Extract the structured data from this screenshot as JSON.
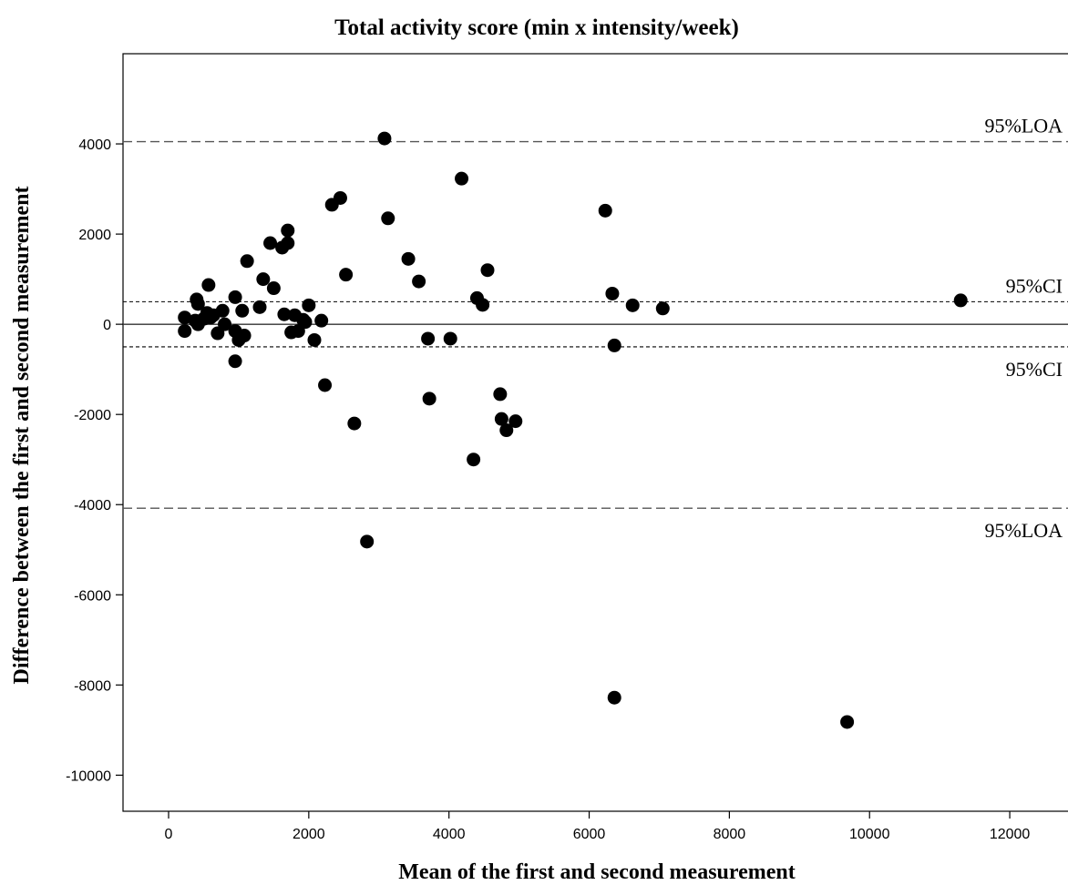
{
  "chart_data": {
    "type": "scatter",
    "title": "Total activity score (min x intensity/week)",
    "xlabel": "Mean of the first and second measurement",
    "ylabel": "Difference between the first and second measurement",
    "xlim": [
      -650,
      13000
    ],
    "ylim": [
      -10800,
      6000
    ],
    "xticks": [
      0,
      2000,
      4000,
      6000,
      8000,
      10000,
      12000
    ],
    "yticks": [
      -10000,
      -8000,
      -6000,
      -4000,
      -2000,
      0,
      2000,
      4000
    ],
    "grid": false,
    "reference_lines": [
      {
        "label": "95%LOA",
        "y": 4050,
        "style": "dashed",
        "label_position": "above"
      },
      {
        "label": "95%CI",
        "y": 500,
        "style": "dotted",
        "label_position": "above"
      },
      {
        "label": "",
        "y": 0,
        "style": "solid",
        "label_position": "none"
      },
      {
        "label": "95%CI",
        "y": -500,
        "style": "dotted",
        "label_position": "below"
      },
      {
        "label": "95%LOA",
        "y": -4080,
        "style": "dashed",
        "label_position": "below"
      }
    ],
    "points": [
      {
        "x": 230,
        "y": 150
      },
      {
        "x": 230,
        "y": -150
      },
      {
        "x": 380,
        "y": 80
      },
      {
        "x": 400,
        "y": 550
      },
      {
        "x": 420,
        "y": 450
      },
      {
        "x": 420,
        "y": 0
      },
      {
        "x": 500,
        "y": 120
      },
      {
        "x": 550,
        "y": 250
      },
      {
        "x": 570,
        "y": 870
      },
      {
        "x": 600,
        "y": 150
      },
      {
        "x": 640,
        "y": 200
      },
      {
        "x": 700,
        "y": -200
      },
      {
        "x": 770,
        "y": 300
      },
      {
        "x": 800,
        "y": 0
      },
      {
        "x": 950,
        "y": 600
      },
      {
        "x": 950,
        "y": -150
      },
      {
        "x": 950,
        "y": -820
      },
      {
        "x": 1000,
        "y": -350
      },
      {
        "x": 1050,
        "y": 300
      },
      {
        "x": 1080,
        "y": -250
      },
      {
        "x": 1120,
        "y": 1400
      },
      {
        "x": 1300,
        "y": 380
      },
      {
        "x": 1350,
        "y": 1000
      },
      {
        "x": 1450,
        "y": 1800
      },
      {
        "x": 1500,
        "y": 800
      },
      {
        "x": 1620,
        "y": 1700
      },
      {
        "x": 1650,
        "y": 220
      },
      {
        "x": 1700,
        "y": 2080
      },
      {
        "x": 1700,
        "y": 1800
      },
      {
        "x": 1750,
        "y": -180
      },
      {
        "x": 1800,
        "y": 200
      },
      {
        "x": 1850,
        "y": -150
      },
      {
        "x": 1920,
        "y": 100
      },
      {
        "x": 1950,
        "y": 50
      },
      {
        "x": 2000,
        "y": 420
      },
      {
        "x": 2080,
        "y": -350
      },
      {
        "x": 2180,
        "y": 80
      },
      {
        "x": 2230,
        "y": -1350
      },
      {
        "x": 2330,
        "y": 2650
      },
      {
        "x": 2450,
        "y": 2800
      },
      {
        "x": 2530,
        "y": 1100
      },
      {
        "x": 2650,
        "y": -2200
      },
      {
        "x": 2830,
        "y": -4820
      },
      {
        "x": 3080,
        "y": 4120
      },
      {
        "x": 3130,
        "y": 2350
      },
      {
        "x": 3420,
        "y": 1450
      },
      {
        "x": 3570,
        "y": 950
      },
      {
        "x": 3700,
        "y": -320
      },
      {
        "x": 3720,
        "y": -1650
      },
      {
        "x": 4020,
        "y": -320
      },
      {
        "x": 4180,
        "y": 3230
      },
      {
        "x": 4350,
        "y": -3000
      },
      {
        "x": 4400,
        "y": 580
      },
      {
        "x": 4480,
        "y": 430
      },
      {
        "x": 4550,
        "y": 1200
      },
      {
        "x": 4730,
        "y": -1550
      },
      {
        "x": 4750,
        "y": -2100
      },
      {
        "x": 4820,
        "y": -2350
      },
      {
        "x": 4950,
        "y": -2150
      },
      {
        "x": 6230,
        "y": 2520
      },
      {
        "x": 6330,
        "y": 680
      },
      {
        "x": 6360,
        "y": -470
      },
      {
        "x": 6360,
        "y": -8280
      },
      {
        "x": 6620,
        "y": 420
      },
      {
        "x": 7050,
        "y": 350
      },
      {
        "x": 9680,
        "y": -8820
      },
      {
        "x": 11300,
        "y": 530
      }
    ]
  }
}
